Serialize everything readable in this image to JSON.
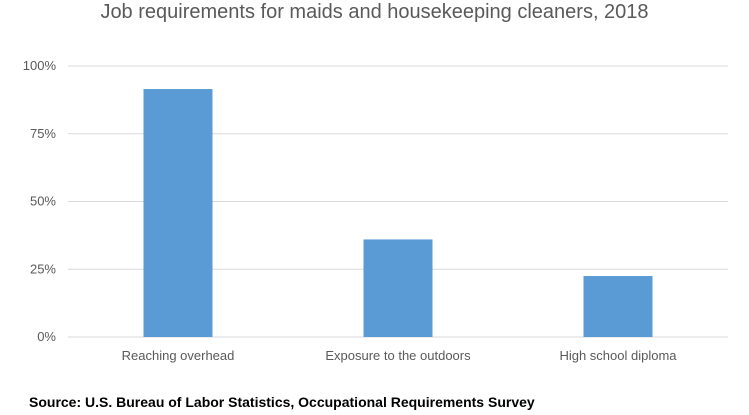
{
  "chart_data": {
    "type": "bar",
    "title": "Job requirements for maids and housekeeping cleaners, 2018",
    "categories": [
      "Reaching overhead",
      "Exposure to the outdoors",
      "High school diploma"
    ],
    "values": [
      91.5,
      36,
      22.5
    ],
    "yticks": [
      "0%",
      "25%",
      "50%",
      "75%",
      "100%"
    ],
    "ylim": [
      0,
      100
    ],
    "grid": true,
    "bar_color": "#5B9BD5",
    "grid_color": "#D9D9D9",
    "xlabel": "",
    "ylabel": ""
  },
  "source": "Source: U.S. Bureau of Labor Statistics, Occupational Requirements Survey"
}
